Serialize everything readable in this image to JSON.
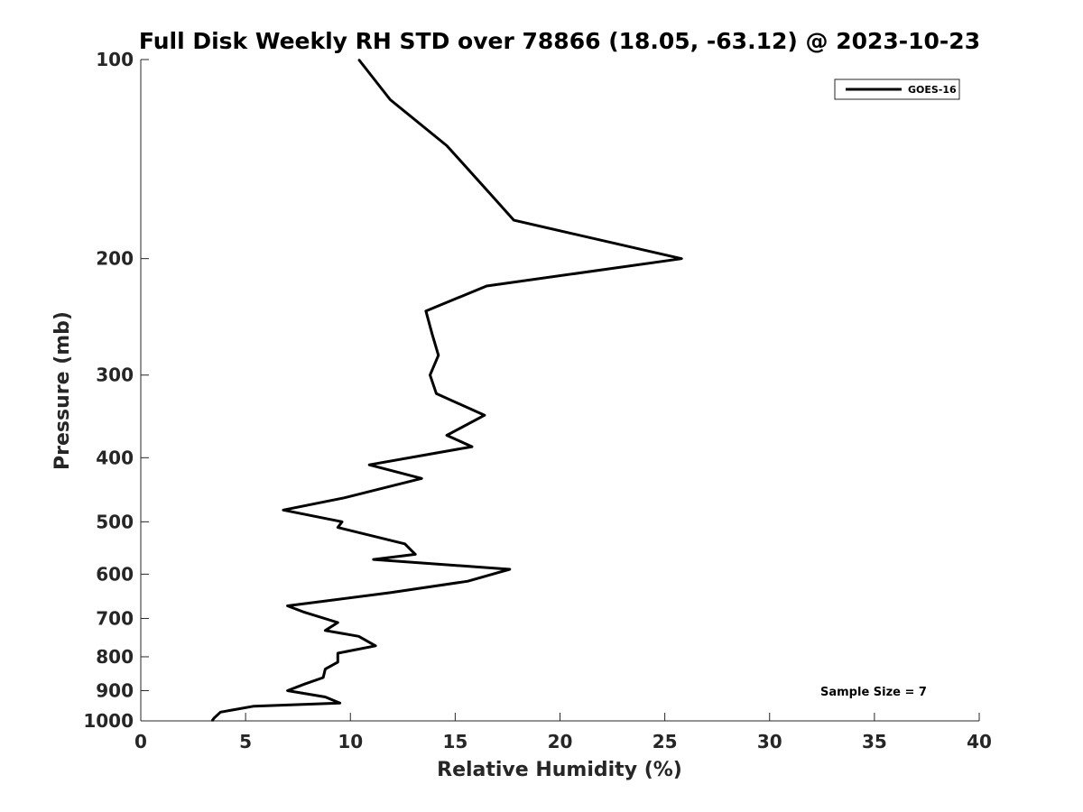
{
  "chart_data": {
    "type": "line",
    "title": "Full Disk Weekly RH STD over 78866 (18.05, -63.12) @ 2023-10-23",
    "xlabel": "Relative Humidity (%)",
    "ylabel": "Pressure (mb)",
    "xlim": [
      0,
      40
    ],
    "ylim": [
      1000,
      100
    ],
    "yscale": "log",
    "y_reversed": true,
    "x_ticks": [
      0,
      5,
      10,
      15,
      20,
      25,
      30,
      35,
      40
    ],
    "x_tick_labels": [
      "0",
      "5",
      "10",
      "15",
      "20",
      "25",
      "30",
      "35",
      "40"
    ],
    "y_ticks": [
      100,
      200,
      300,
      400,
      500,
      600,
      700,
      800,
      900,
      1000
    ],
    "y_tick_labels": [
      "100",
      "200",
      "300",
      "400",
      "500",
      "600",
      "700",
      "800",
      "900",
      "1000"
    ],
    "grid": false,
    "legend_position": "top-right",
    "annotation": "Sample Size = 7",
    "series": [
      {
        "name": "GOES-16",
        "color": "#000000",
        "x": [
          10.4,
          11.9,
          14.6,
          16.7,
          17.8,
          25.8,
          16.5,
          13.6,
          13.9,
          14.2,
          13.8,
          14.1,
          16.4,
          14.6,
          15.8,
          10.9,
          13.4,
          9.7,
          6.8,
          9.6,
          9.4,
          12.6,
          13.1,
          11.1,
          17.6,
          15.6,
          11.9,
          7.0,
          7.8,
          9.4,
          8.8,
          10.4,
          11.2,
          9.4,
          9.4,
          8.8,
          8.7,
          7.8,
          7.0,
          8.8,
          9.5,
          5.4,
          3.8,
          3.5,
          3.4
        ],
        "y": [
          100,
          115,
          135,
          160,
          175,
          200,
          220,
          240,
          260,
          280,
          300,
          320,
          345,
          370,
          385,
          410,
          430,
          460,
          480,
          500,
          510,
          540,
          560,
          570,
          590,
          615,
          640,
          670,
          685,
          710,
          730,
          745,
          770,
          790,
          815,
          835,
          860,
          880,
          900,
          920,
          940,
          950,
          970,
          990,
          1000
        ]
      }
    ]
  }
}
